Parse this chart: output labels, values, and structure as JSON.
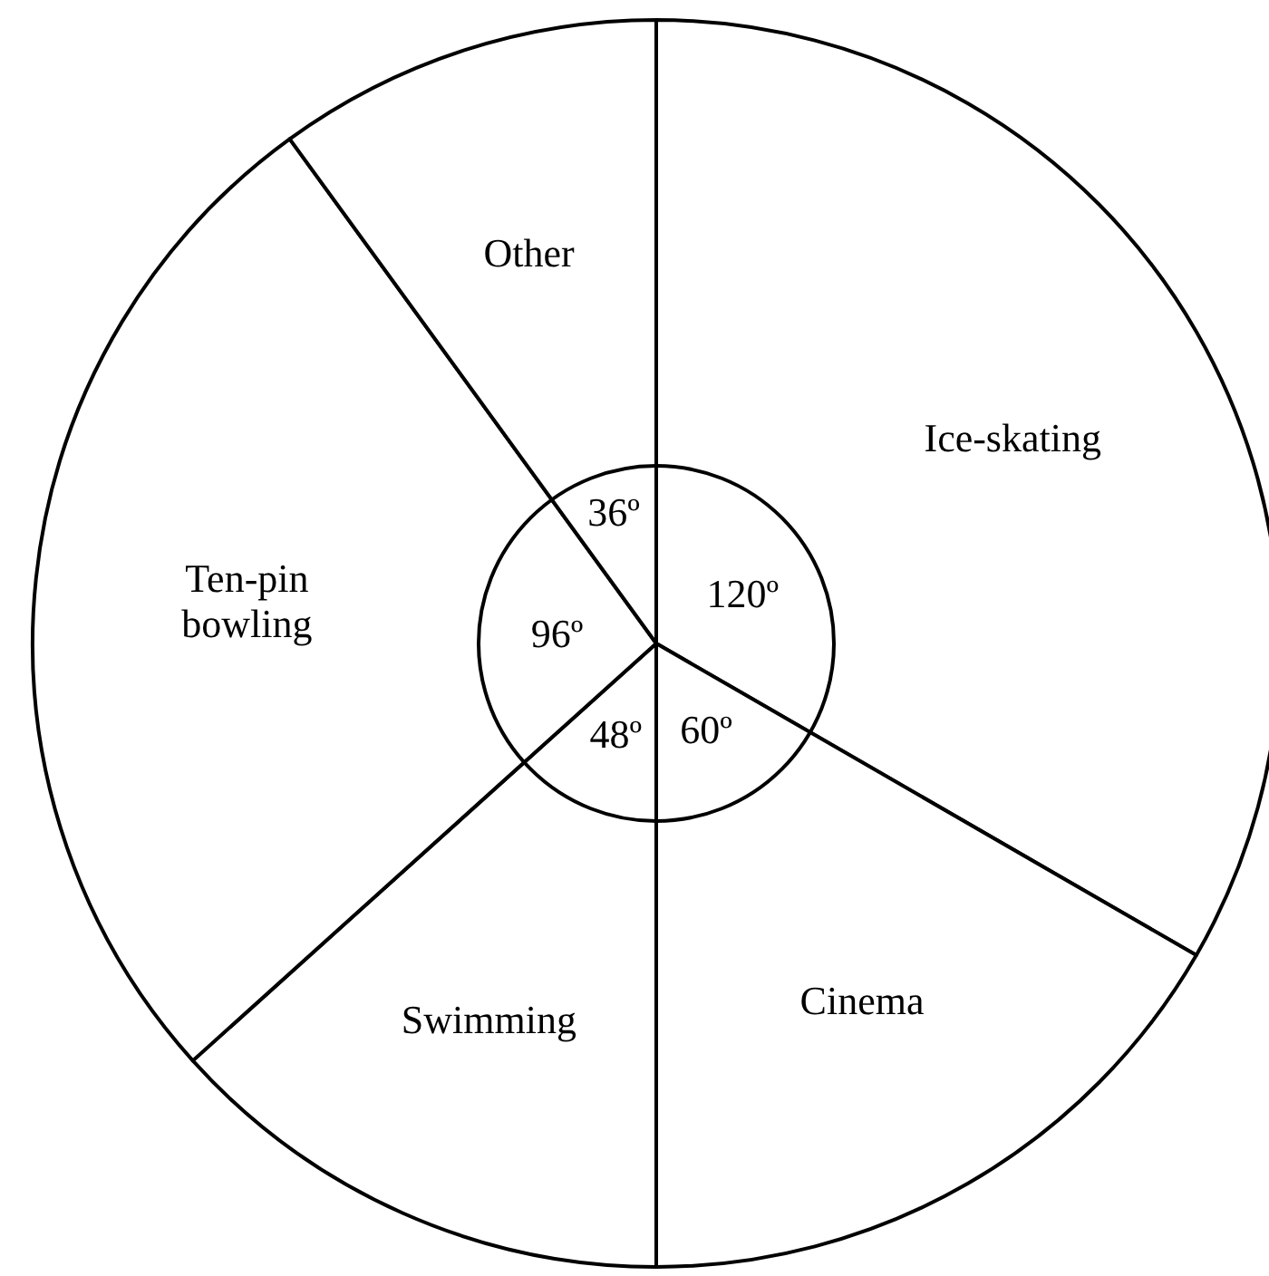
{
  "chart_data": {
    "type": "pie",
    "categories": [
      "Ice-skating",
      "Cinema",
      "Swimming",
      "Ten-pin bowling",
      "Other"
    ],
    "values": [
      120,
      60,
      48,
      96,
      36
    ],
    "value_labels": [
      "120º",
      "60º",
      "48º",
      "96º",
      "36º"
    ],
    "colors": [
      "#ffffff",
      "#ffffff",
      "#ffffff",
      "#ffffff",
      "#ffffff"
    ]
  }
}
